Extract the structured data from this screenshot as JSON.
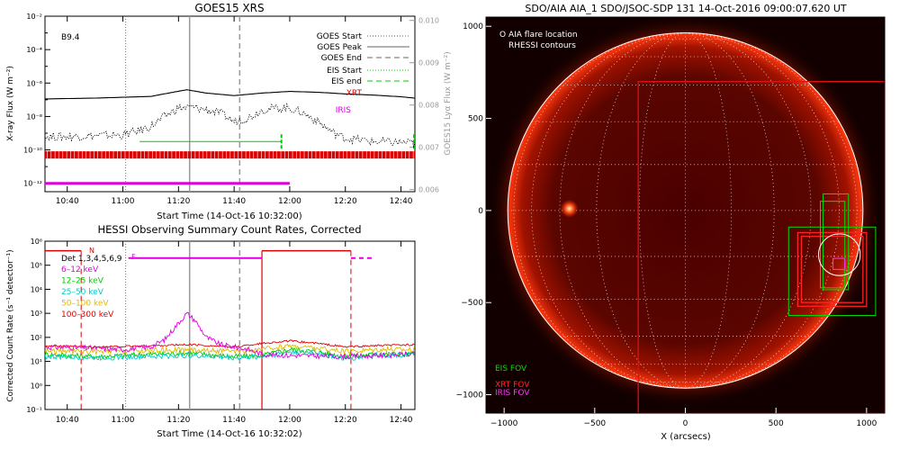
{
  "chart_data": [
    {
      "type": "line",
      "title": "GOES15 XRS",
      "xlabel": "Start Time (14-Oct-16 10:32:00)",
      "ylabel": "X-ray Flux (W m⁻²)",
      "ylabel_right": "GOES15 Lyα Flux (W m⁻²)",
      "annotation": "B9.4",
      "x_ticks": [
        "10:40",
        "11:00",
        "11:20",
        "11:40",
        "12:00",
        "12:20",
        "12:40"
      ],
      "x_tick_minutes": [
        40,
        60,
        80,
        100,
        120,
        140,
        160
      ],
      "xlim_minutes": [
        32,
        165
      ],
      "y_ticks": [
        "10⁻²",
        "10⁻⁴",
        "10⁻⁶",
        "10⁻⁸",
        "10⁻¹⁰",
        "10⁻¹²"
      ],
      "y_tick_exponents": [
        -2,
        -4,
        -6,
        -8,
        -10,
        -12
      ],
      "ylim_log": [
        -12.5,
        -2
      ],
      "y_right_ticks": [
        "0.010",
        "0.009",
        "0.008",
        "0.007",
        "0.006"
      ],
      "y_right_values": [
        0.01,
        0.009,
        0.008,
        0.007,
        0.006
      ],
      "ylim_right": [
        0.00595,
        0.0101
      ],
      "legend": {
        "goes_start": "GOES Start",
        "goes_peak": "GOES Peak",
        "goes_end": "GOES End",
        "eis_start": "EIS Start",
        "eis_end": "EIS end",
        "xrt": "XRT",
        "iris": "IRIS"
      },
      "series": [
        {
          "name": "",
          "color": "#000000",
          "style": "solid",
          "x": [
            32,
            50,
            70,
            78,
            83,
            90,
            100,
            110,
            120,
            130,
            140,
            150,
            160,
            165
          ],
          "log_y": [
            -6.95,
            -6.9,
            -6.8,
            -6.55,
            -6.4,
            -6.6,
            -6.75,
            -6.6,
            -6.5,
            -6.55,
            -6.65,
            -6.72,
            -6.82,
            -6.9
          ]
        },
        {
          "name": "",
          "color": "#000000",
          "style": "dotted",
          "x": [
            32,
            40,
            50,
            60,
            65,
            70,
            75,
            80,
            85,
            90,
            95,
            100,
            105,
            110,
            115,
            120,
            125,
            130,
            135,
            140,
            150,
            160,
            165
          ],
          "log_y": [
            -9.2,
            -9.2,
            -9.15,
            -9.1,
            -8.9,
            -8.6,
            -8.0,
            -7.5,
            -7.45,
            -7.6,
            -7.8,
            -8.3,
            -8.1,
            -7.6,
            -7.5,
            -7.5,
            -7.8,
            -8.3,
            -8.9,
            -9.3,
            -9.5,
            -9.55,
            -9.6
          ]
        }
      ],
      "markers": {
        "goes_start_min": 61,
        "goes_peak_min": 84,
        "goes_end_min": 102,
        "eis_start_min": 66,
        "eis_end_min": 117,
        "eis_level_exp": -9.5,
        "xrt_level_exp": -10.3,
        "xrt_start_min": 32,
        "xrt_end_min": 165,
        "iris_level_exp": -12,
        "iris_start_min": 32,
        "iris_end_min": 120
      }
    },
    {
      "type": "line",
      "title": "HESSI Observing Summary Count Rates, Corrected",
      "xlabel": "Start Time (14-Oct-16 10:32:02)",
      "ylabel": "Corrected Count Rate (s⁻¹ detector⁻¹)",
      "x_ticks": [
        "10:40",
        "11:00",
        "11:20",
        "11:40",
        "12:00",
        "12:20",
        "12:40"
      ],
      "x_tick_minutes": [
        40,
        60,
        80,
        100,
        120,
        140,
        160
      ],
      "xlim_minutes": [
        32,
        165
      ],
      "y_ticks": [
        "10⁶",
        "10⁵",
        "10⁴",
        "10³",
        "10²",
        "10¹",
        "10⁰",
        "10⁻¹"
      ],
      "y_tick_exponents": [
        6,
        5,
        4,
        3,
        2,
        1,
        0,
        -1
      ],
      "ylim_log": [
        -1,
        6
      ],
      "legend_title": "Det 1,3,4,5,6,9",
      "status_flags": {
        "N": "N",
        "F": "F"
      },
      "series": [
        {
          "name": "6–12 keV",
          "color": "#dd00dd",
          "x": [
            32,
            50,
            60,
            70,
            75,
            80,
            83,
            86,
            90,
            95,
            100,
            105,
            110,
            120,
            140,
            165
          ],
          "log_y": [
            1.6,
            1.55,
            1.5,
            1.6,
            1.9,
            2.6,
            3.0,
            2.7,
            2.0,
            1.7,
            1.6,
            1.5,
            1.3,
            1.25,
            1.2,
            1.3
          ]
        },
        {
          "name": "12–25 keV",
          "color": "#00cc00",
          "x": [
            32,
            50,
            70,
            84,
            100,
            110,
            120,
            130,
            140,
            150,
            165
          ],
          "log_y": [
            1.3,
            1.2,
            1.3,
            1.35,
            1.2,
            1.25,
            1.5,
            1.4,
            1.2,
            1.3,
            1.3
          ]
        },
        {
          "name": "25–50 keV",
          "color": "#00cccc",
          "x": [
            32,
            50,
            70,
            84,
            100,
            110,
            120,
            130,
            140,
            150,
            165
          ],
          "log_y": [
            1.2,
            1.15,
            1.2,
            1.25,
            1.15,
            1.2,
            1.4,
            1.35,
            1.1,
            1.25,
            1.3
          ]
        },
        {
          "name": "50–100 keV",
          "color": "#ddbb00",
          "x": [
            32,
            50,
            70,
            84,
            100,
            110,
            120,
            130,
            140,
            150,
            165
          ],
          "log_y": [
            1.45,
            1.4,
            1.45,
            1.5,
            1.4,
            1.5,
            1.65,
            1.55,
            1.4,
            1.5,
            1.5
          ]
        },
        {
          "name": "100–300 keV",
          "color": "#dd0000",
          "x": [
            32,
            50,
            70,
            84,
            100,
            110,
            120,
            130,
            140,
            150,
            165
          ],
          "log_y": [
            1.65,
            1.6,
            1.65,
            1.7,
            1.6,
            1.75,
            1.85,
            1.75,
            1.6,
            1.65,
            1.7
          ]
        }
      ],
      "markers": {
        "goes_start_min": 61,
        "goes_peak_min": 84,
        "goes_end_min": 102,
        "red_dashed_min": [
          45,
          142
        ],
        "red_solid_min": 110,
        "red_bar_level_exp": 5.6,
        "red_bar_segments": [
          [
            32,
            45
          ],
          [
            110,
            142
          ]
        ],
        "magenta_bar_level_exp": 5.3,
        "magenta_bar_segments": [
          [
            62,
            110
          ],
          [
            142,
            150
          ]
        ]
      }
    },
    {
      "type": "scatter",
      "title": "SDO/AIA AIA_1 SDO/JSOC-SDP 131 14-Oct-2016 09:00:07.620 UT",
      "xlabel": "X (arcsecs)",
      "ylabel": "Y (arcsecs)",
      "x_ticks": [
        "−1000",
        "−500",
        "0",
        "500",
        "1000"
      ],
      "x_tick_values": [
        -1000,
        -500,
        0,
        500,
        1000
      ],
      "y_ticks": [
        "1000",
        "500",
        "0",
        "−500",
        "−1000"
      ],
      "y_tick_values": [
        1000,
        500,
        0,
        -500,
        -1000
      ],
      "xlim": [
        -1100,
        1100
      ],
      "ylim": [
        -1100,
        1050
      ],
      "solar_radius": 980,
      "legend_top": [
        "O AIA flare location",
        "RHESSI contours"
      ],
      "legend_bottom": [
        {
          "label": "EIS FOV",
          "color": "#00dd00"
        },
        {
          "label": "XRT FOV",
          "color": "#ff2222"
        },
        {
          "label": "IRIS FOV",
          "color": "#ff33ff"
        }
      ],
      "fov_boxes": [
        {
          "instrument": "XRT",
          "color": "#dd1111",
          "x0": -260,
          "y0": -1100,
          "x1": 1100,
          "y1": 700
        },
        {
          "instrument": "XRT",
          "color": "#ff2222",
          "x0": 620,
          "y0": -520,
          "x1": 1000,
          "y1": -120
        },
        {
          "instrument": "XRT",
          "color": "#ff2222",
          "x0": 640,
          "y0": -500,
          "x1": 980,
          "y1": -140
        },
        {
          "instrument": "EIS",
          "color": "#00dd00",
          "x0": 570,
          "y0": -570,
          "x1": 1050,
          "y1": -90
        },
        {
          "instrument": "EIS",
          "color": "#00dd00",
          "x0": 760,
          "y0": -430,
          "x1": 900,
          "y1": 90
        },
        {
          "instrument": "EIS",
          "color": "#00dd00",
          "x0": 745,
          "y0": -420,
          "x1": 880,
          "y1": 50
        },
        {
          "instrument": "IRIS",
          "color": "#ff33ff",
          "x0": 815,
          "y0": -320,
          "x1": 880,
          "y1": -260
        }
      ],
      "flare_location": {
        "x": 850,
        "y": -240,
        "r": 115
      },
      "bright_spot": {
        "x": -640,
        "y": 10
      }
    }
  ]
}
